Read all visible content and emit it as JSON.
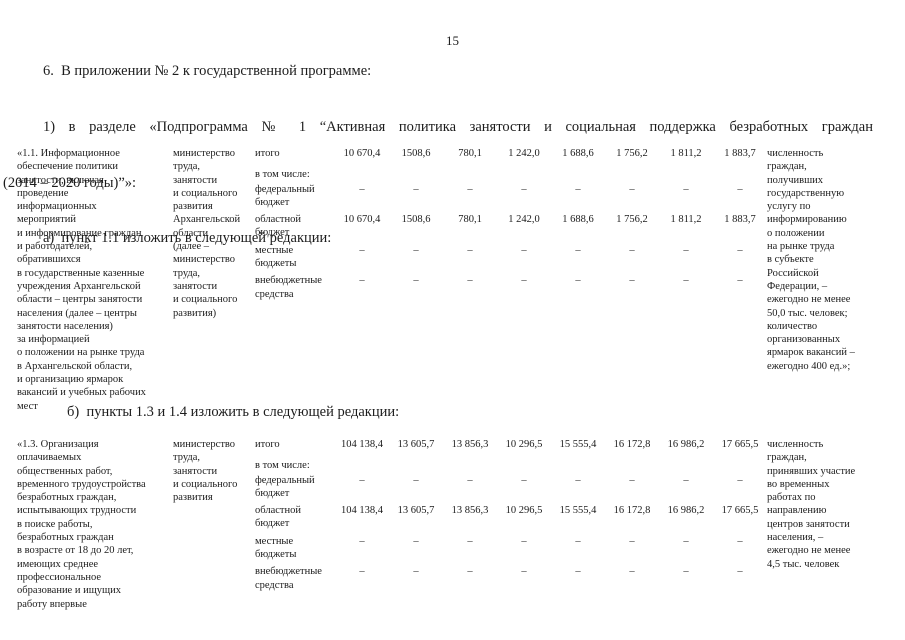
{
  "page": {
    "number": "15"
  },
  "paragraphs": {
    "item6": "6.  В приложении № 2 к государственной программе:",
    "item1_line1": "1) в разделе «Подпрограмма № 1 “Активная политика занятости и социальная поддержка безработных граждан",
    "item1_line2": "(2014 – 2020 годы)”»:",
    "item_a": "а)  пункт 1.1 изложить в следующей редакции:",
    "item_b": "б)  пункты 1.3 и 1.4 изложить в следующей редакции:"
  },
  "tables": [
    {
      "id": "point-1-1",
      "activity": "«1.1. Информационное\nобеспечение политики\nзанятости, включая\nпроведение\nинформационных\nмероприятий\nи информирование граждан\nи работодателей,\nобратившихся\nв государственные казенные\nучреждения Архангельской\nобласти – центры занятости\nнаселения (далее – центры\nзанятости населения)\nза информацией\nо положении на рынке труда\nв Архангельской области,\nи организацию ярмарок\nвакансий и учебных рабочих\nмест",
      "executor": "министерство\nтруда,\nзанятости\nи социального\nразвития\nАрхангельской\nобласти\n(далее –\nминистерство\nтруда,\nзанятости\nи социального\nразвития)",
      "rows": [
        {
          "label": "итого",
          "values": [
            "10 670,4",
            "1508,6",
            "780,1",
            "1 242,0",
            "1 688,6",
            "1 756,2",
            "1 811,2",
            "1 883,7"
          ]
        },
        {
          "label": "в том числе:",
          "values": [
            "",
            "",
            "",
            "",
            "",
            "",
            "",
            ""
          ]
        },
        {
          "label": "федеральный\nбюджет",
          "values": [
            "–",
            "–",
            "–",
            "–",
            "–",
            "–",
            "–",
            "–"
          ]
        },
        {
          "label": "областной\nбюджет",
          "values": [
            "10 670,4",
            "1508,6",
            "780,1",
            "1 242,0",
            "1 688,6",
            "1 756,2",
            "1 811,2",
            "1 883,7"
          ]
        },
        {
          "label": "местные\nбюджеты",
          "values": [
            "–",
            "–",
            "–",
            "–",
            "–",
            "–",
            "–",
            "–"
          ]
        },
        {
          "label": "внебюджетные\nсредства",
          "values": [
            "–",
            "–",
            "–",
            "–",
            "–",
            "–",
            "–",
            "–"
          ]
        }
      ],
      "indicator": "численность\nграждан,\nполучивших\nгосударственную\nуслугу по\nинформированию\nо положении\nна рынке труда\nв субъекте\nРоссийской\nФедерации, –\nежегодно не менее\n50,0 тыс. человек;\nколичество\nорганизованных\nярмарок вакансий –\nежегодно 400 ед.»;"
    },
    {
      "id": "point-1-3",
      "activity": "«1.3. Организация\nоплачиваемых\nобщественных работ,\nвременного трудоустройства\nбезработных граждан,\nиспытывающих трудности\nв поиске работы,\nбезработных граждан\nв возрасте от 18 до 20 лет,\nимеющих среднее\nпрофессиональное\nобразование и ищущих\nработу впервые",
      "executor": "министерство\nтруда,\nзанятости\nи социального\nразвития",
      "rows": [
        {
          "label": "итого",
          "values": [
            "104 138,4",
            "13 605,7",
            "13 856,3",
            "10 296,5",
            "15 555,4",
            "16 172,8",
            "16 986,2",
            "17 665,5"
          ]
        },
        {
          "label": "в том числе:",
          "values": [
            "",
            "",
            "",
            "",
            "",
            "",
            "",
            ""
          ]
        },
        {
          "label": "федеральный\nбюджет",
          "values": [
            "–",
            "–",
            "–",
            "–",
            "–",
            "–",
            "–",
            "–"
          ]
        },
        {
          "label": "областной\nбюджет",
          "values": [
            "104 138,4",
            "13 605,7",
            "13 856,3",
            "10 296,5",
            "15 555,4",
            "16 172,8",
            "16 986,2",
            "17 665,5"
          ]
        },
        {
          "label": "местные\nбюджеты",
          "values": [
            "–",
            "–",
            "–",
            "–",
            "–",
            "–",
            "–",
            "–"
          ]
        },
        {
          "label": "внебюджетные\nсредства",
          "values": [
            "–",
            "–",
            "–",
            "–",
            "–",
            "–",
            "–",
            "–"
          ]
        }
      ],
      "indicator": "численность\nграждан,\nпринявших участие\nво временных\nработах по\nнаправлению\nцентров занятости\nнаселения, –\nежегодно не менее\n4,5 тыс. человек"
    }
  ]
}
